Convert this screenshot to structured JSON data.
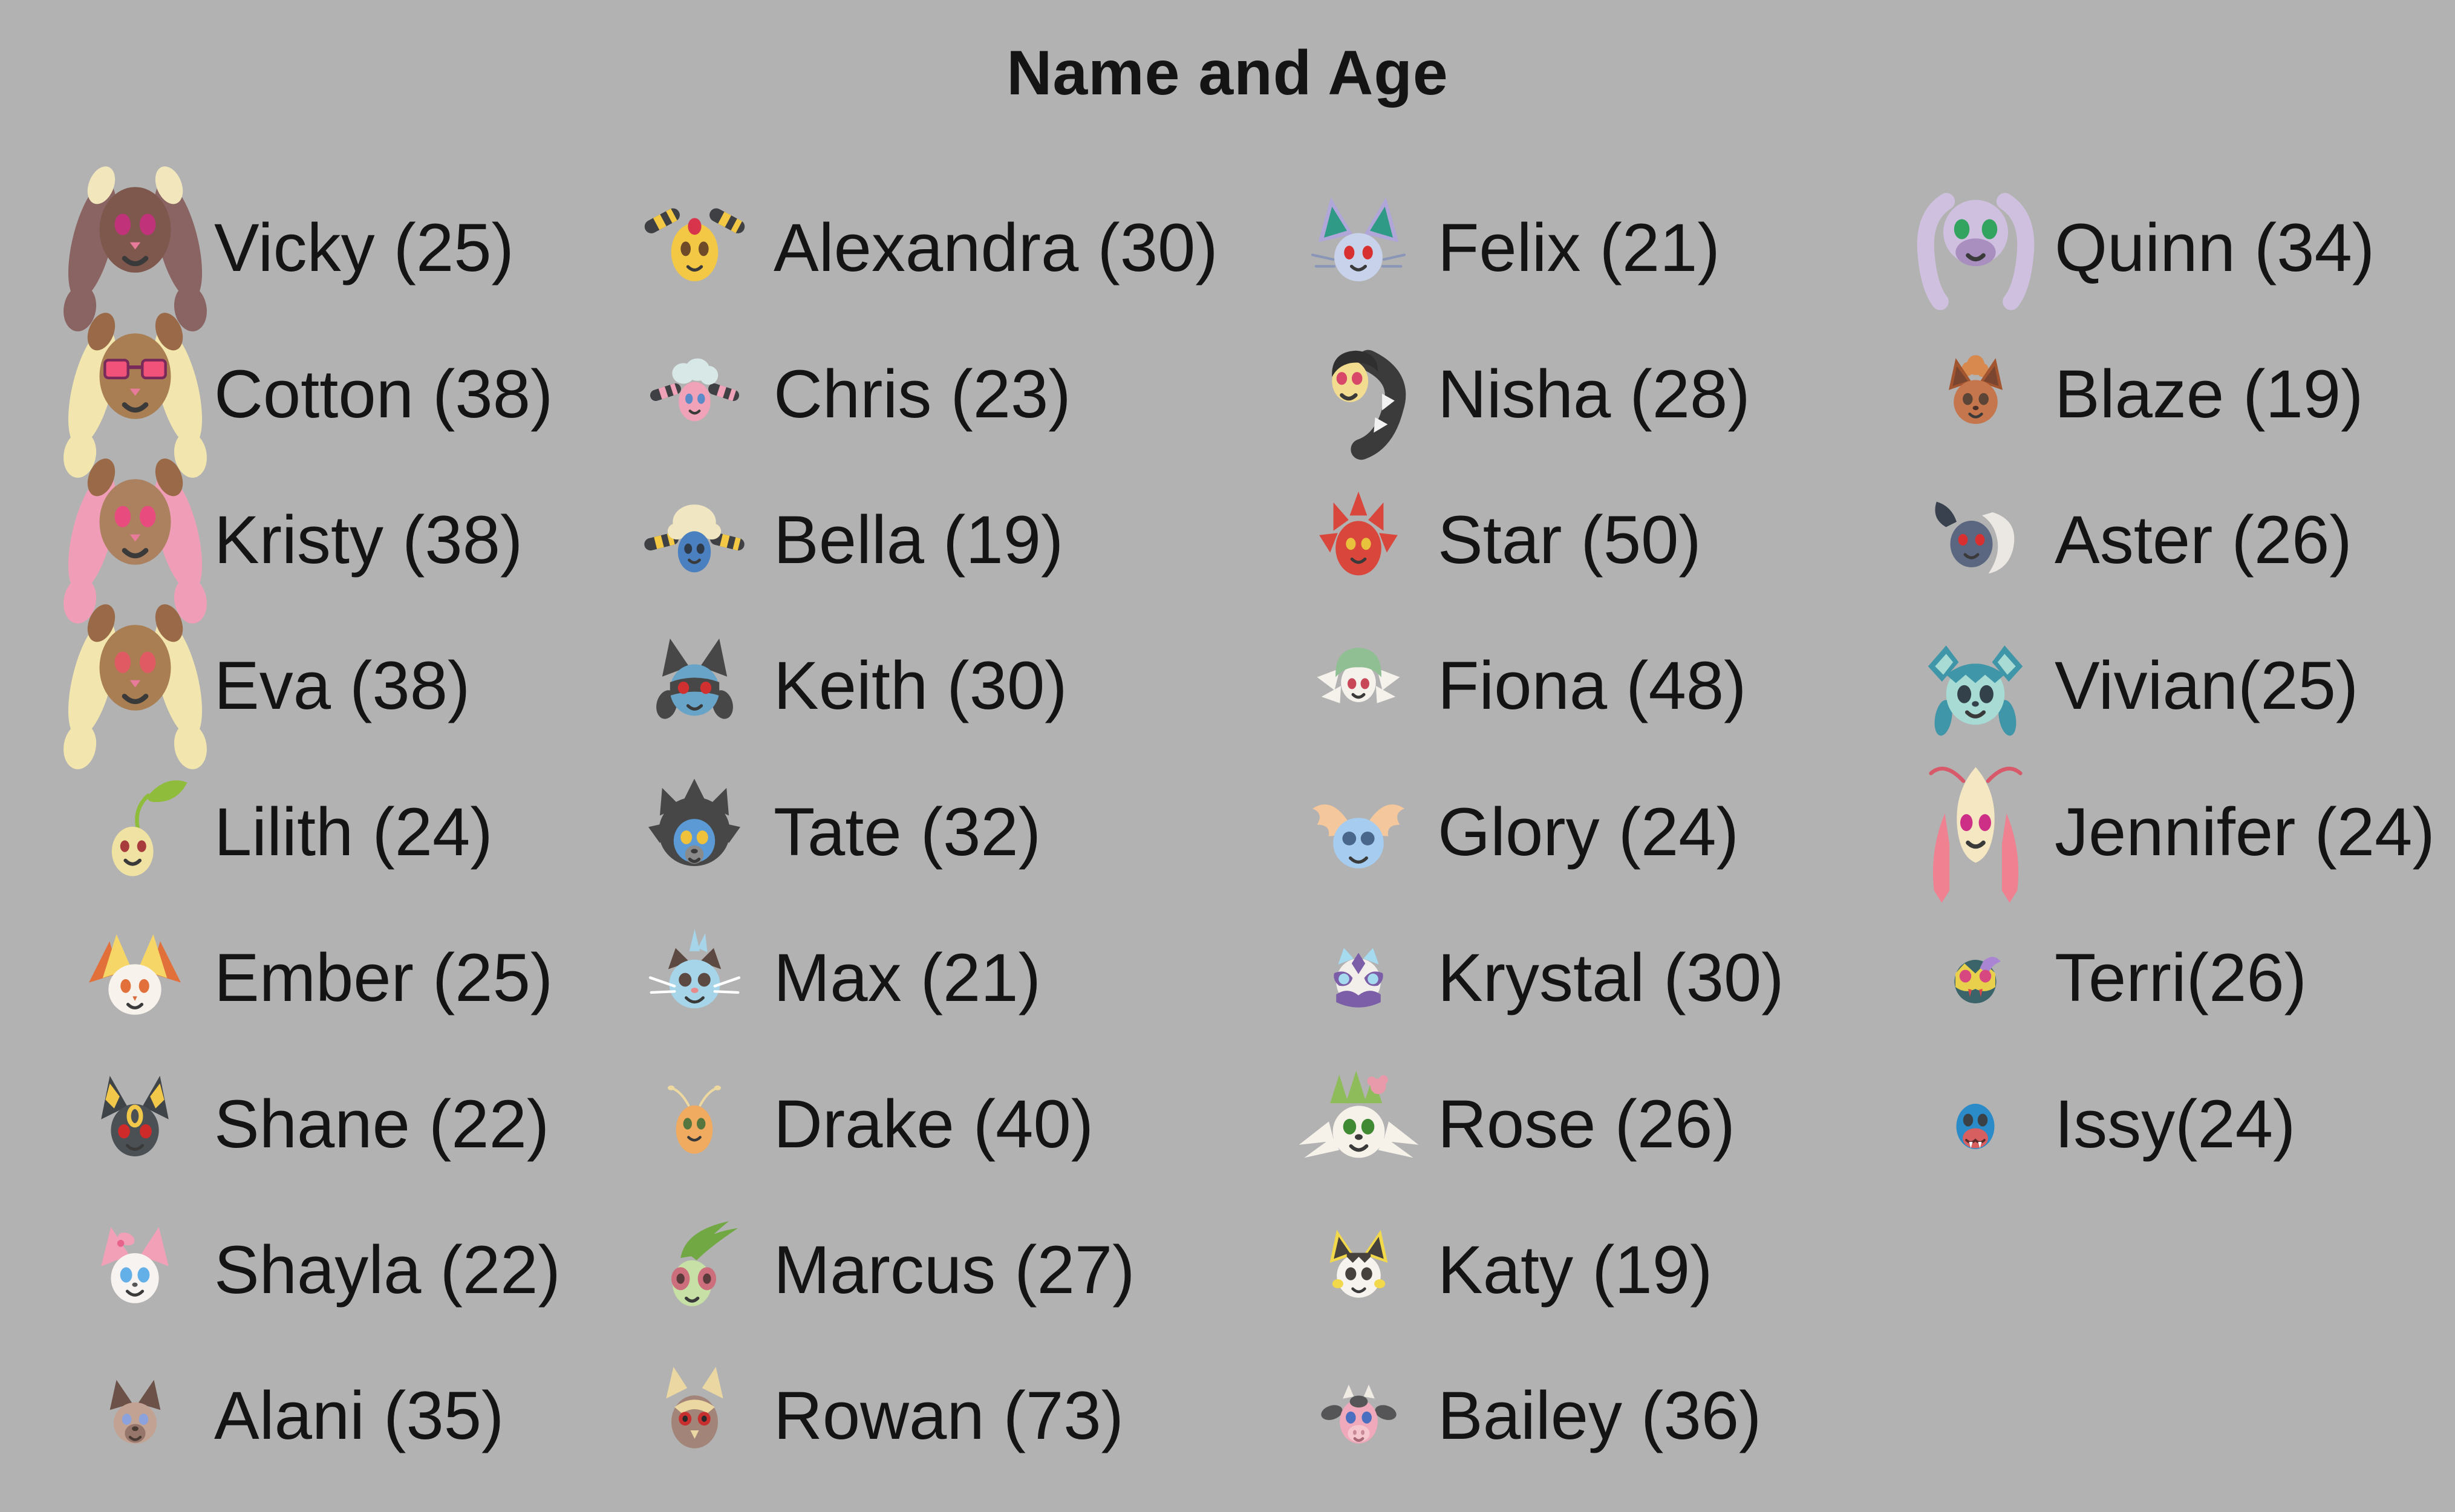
{
  "page": {
    "background": "#B2B2B2",
    "text_color": "#141414"
  },
  "title": "Name and Age",
  "chart_data": {
    "type": "table",
    "title": "Name and Age",
    "columns": [
      "Name",
      "Age"
    ],
    "rows": [
      [
        "Vicky",
        25
      ],
      [
        "Cotton",
        38
      ],
      [
        "Kristy",
        38
      ],
      [
        "Eva",
        38
      ],
      [
        "Lilith",
        24
      ],
      [
        "Ember",
        25
      ],
      [
        "Shane",
        22
      ],
      [
        "Shayla",
        22
      ],
      [
        "Alani",
        35
      ],
      [
        "Alexandra",
        30
      ],
      [
        "Chris",
        23
      ],
      [
        "Bella",
        19
      ],
      [
        "Keith",
        30
      ],
      [
        "Tate",
        32
      ],
      [
        "Max",
        21
      ],
      [
        "Drake",
        40
      ],
      [
        "Marcus",
        27
      ],
      [
        "Rowan",
        73
      ],
      [
        "Felix",
        21
      ],
      [
        "Nisha",
        28
      ],
      [
        "Star",
        50
      ],
      [
        "Fiona",
        48
      ],
      [
        "Glory",
        24
      ],
      [
        "Krystal",
        30
      ],
      [
        "Rose",
        26
      ],
      [
        "Katy",
        19
      ],
      [
        "Bailey",
        36
      ],
      [
        "Quinn",
        34
      ],
      [
        "Blaze",
        19
      ],
      [
        "Aster",
        26
      ],
      [
        "Vivian",
        25
      ],
      [
        "Jennifer",
        24
      ],
      [
        "Terri",
        26
      ],
      [
        "Issy",
        24
      ]
    ],
    "layout": {
      "columns_of_items": 4,
      "rows_per_column": 9,
      "legend": "none",
      "grid": "off"
    }
  },
  "people": [
    {
      "name": "Vicky",
      "age": 25,
      "label": "Vicky (25)",
      "icon": "lopunny",
      "colors": {
        "head": "#7E574D",
        "ear": "#8A6463",
        "tip": "#8A6463",
        "eartop": "#F2E7BC",
        "eye": "#C0337A"
      }
    },
    {
      "name": "Cotton",
      "age": 38,
      "label": "Cotton (38)",
      "icon": "lopunny",
      "colors": {
        "head": "#A87E52",
        "ear": "#F2E6AE",
        "tip": "#F2E6AE",
        "eartop": "#9A6A48",
        "eye": "#F0527A",
        "glasses": true
      }
    },
    {
      "name": "Kristy",
      "age": 38,
      "label": "Kristy (38)",
      "icon": "lopunny",
      "colors": {
        "head": "#AB8160",
        "ear": "#F09EB7",
        "tip": "#F09EB7",
        "eartop": "#9A6A48",
        "eye": "#E84C7F"
      }
    },
    {
      "name": "Eva",
      "age": 38,
      "label": "Eva (38)",
      "icon": "lopunny",
      "colors": {
        "head": "#A87E52",
        "ear": "#F2E6AE",
        "tip": "#F2E6AE",
        "eartop": "#9A6A48",
        "eye": "#E05A63"
      }
    },
    {
      "name": "Lilith",
      "age": 24,
      "label": "Lilith (24)",
      "icon": "sprout",
      "colors": {
        "head": "#EFE2A2",
        "leaf": "#8FBC3B",
        "eye": "#A83C3C"
      }
    },
    {
      "name": "Ember",
      "age": 25,
      "label": "Ember (25)",
      "icon": "fennekin",
      "colors": {
        "head": "#F7F3EC",
        "ear": "#F5D667",
        "flare": "#E2703A",
        "eye": "#E2703A"
      }
    },
    {
      "name": "Shane",
      "age": 22,
      "label": "Shane (22)",
      "icon": "umbreon",
      "colors": {
        "head": "#4A5054",
        "ear": "#3F4448",
        "ring": "#F2C84B",
        "eye": "#CE2A2A"
      }
    },
    {
      "name": "Shayla",
      "age": 22,
      "label": "Shayla (22)",
      "icon": "sylveon",
      "colors": {
        "head": "#F7F3F0",
        "ear": "#F2A0B8",
        "bow": "#F2A0B8",
        "eye": "#63B0E8"
      }
    },
    {
      "name": "Alani",
      "age": 35,
      "label": "Alani (35)",
      "icon": "rockruff",
      "colors": {
        "head": "#C2A292",
        "ear": "#6B5148",
        "muzzle": "#96766A",
        "eye": "#8CA2DC"
      }
    },
    {
      "name": "Alexandra",
      "age": 30,
      "label": "Alexandra (30)",
      "icon": "ampharos",
      "colors": {
        "head": "#F2C844",
        "dark": "#3F4044",
        "stripe": "#F2C844",
        "gem": "#D8344C",
        "eye": "#6E4A28"
      }
    },
    {
      "name": "Chris",
      "age": 23,
      "label": "Chris (23)",
      "icon": "flaaffy",
      "colors": {
        "head": "#F0A2B8",
        "dark": "#3F4044",
        "stripe": "#F0A2B8",
        "wool": "#D8E8E6",
        "eye": "#5A8AC8"
      }
    },
    {
      "name": "Bella",
      "age": 19,
      "label": "Bella (19)",
      "icon": "mareep",
      "colors": {
        "head": "#4A7FC0",
        "dark": "#3F4044",
        "stripe": "#F2C844",
        "wool": "#F0E6C2",
        "eye": "#2F3A48"
      }
    },
    {
      "name": "Keith",
      "age": 30,
      "label": "Keith (30)",
      "icon": "riolu",
      "colors": {
        "head": "#68A4C8",
        "dark": "#474747",
        "eye": "#D03030"
      }
    },
    {
      "name": "Tate",
      "age": 32,
      "label": "Tate (32)",
      "icon": "luxray",
      "colors": {
        "head": "#5B9AD4",
        "mane": "#474747",
        "eye": "#F0C23C"
      }
    },
    {
      "name": "Max",
      "age": 21,
      "label": "Max (21)",
      "icon": "bluecat",
      "colors": {
        "head": "#A6D4E8",
        "dark": "#5C4A42",
        "eye": "#5C4A42"
      }
    },
    {
      "name": "Drake",
      "age": 40,
      "label": "Drake (40)",
      "icon": "drake",
      "colors": {
        "head": "#F0AB61",
        "ant": "#EDD9A0",
        "eye": "#56763F"
      }
    },
    {
      "name": "Marcus",
      "age": 27,
      "label": "Marcus (27)",
      "icon": "flygon",
      "colors": {
        "head": "#C6E0A6",
        "crest": "#72A844",
        "cover": "#CC6E7C"
      }
    },
    {
      "name": "Rowan",
      "age": 73,
      "label": "Rowan (73)",
      "icon": "noctowl",
      "colors": {
        "head": "#A28478",
        "tuft": "#EAD7A2",
        "eye": "#C83030"
      }
    },
    {
      "name": "Felix",
      "age": 21,
      "label": "Felix (21)",
      "icon": "nidoran",
      "colors": {
        "head": "#C8D2EA",
        "earOuter": "#B0A6D8",
        "earInner": "#2F9A86",
        "eye": "#D83030"
      }
    },
    {
      "name": "Nisha",
      "age": 28,
      "label": "Nisha (28)",
      "icon": "seviper",
      "colors": {
        "head": "#F2DC8F",
        "hair": "#2F2F2F",
        "body": "#3B3B3B",
        "eye": "#D84868"
      }
    },
    {
      "name": "Star",
      "age": 50,
      "label": "Star (50)",
      "icon": "flame",
      "colors": {
        "head": "#D8463C",
        "eye": "#E8C23C"
      }
    },
    {
      "name": "Fiona",
      "age": 48,
      "label": "Fiona (48)",
      "icon": "gardevoir",
      "colors": {
        "head": "#F5F2EC",
        "cap": "#8FBF92",
        "wing": "#F5F2EC",
        "eye": "#C84858"
      }
    },
    {
      "name": "Glory",
      "age": 24,
      "label": "Glory (24)",
      "icon": "wingface",
      "colors": {
        "head": "#A6CDF0",
        "wing": "#F4C79C",
        "eye": "#49678A"
      }
    },
    {
      "name": "Krystal",
      "age": 30,
      "label": "Krystal (30)",
      "icon": "froslass",
      "colors": {
        "head": "#F2EEE9",
        "ice": "#A5DAEF",
        "purple": "#7B5EA7"
      }
    },
    {
      "name": "Rose",
      "age": 26,
      "label": "Rose (26)",
      "icon": "shaymin",
      "colors": {
        "head": "#F6F2EA",
        "grass": "#8FBC5A",
        "flower": "#E89AAB",
        "eye": "#3F8A33"
      }
    },
    {
      "name": "Katy",
      "age": 19,
      "label": "Katy (19)",
      "icon": "emolga",
      "colors": {
        "head": "#F6F3EE",
        "rim": "#F2D84B",
        "dark": "#46413C",
        "eye": "#46413C",
        "cheek": "#F2D84B"
      }
    },
    {
      "name": "Bailey",
      "age": 36,
      "label": "Bailey (36)",
      "icon": "miltank",
      "colors": {
        "head": "#F0A9BA",
        "dark": "#555558",
        "horn": "#F0ECE4",
        "eye": "#4A6FC0"
      }
    },
    {
      "name": "Quinn",
      "age": 34,
      "label": "Quinn (34)",
      "icon": "goodra",
      "colors": {
        "head": "#CEC0DE",
        "muzzle": "#A98FC0",
        "eye": "#33A45F"
      }
    },
    {
      "name": "Blaze",
      "age": 19,
      "label": "Blaze (19)",
      "icon": "vulpix",
      "colors": {
        "head": "#C5764C",
        "ear": "#A2552F",
        "earIn": "#7A4630",
        "tuft": "#D8894E",
        "eye": "#5C4436"
      }
    },
    {
      "name": "Aster",
      "age": 26,
      "label": "Aster (26)",
      "icon": "absol",
      "colors": {
        "head": "#5B6780",
        "hair": "#EBE7E3",
        "horn": "#39404E",
        "eye": "#D83030"
      }
    },
    {
      "name": "Vivian",
      "age": 25,
      "label": "Vivian(25)",
      "icon": "glaceon",
      "colors": {
        "head": "#A7DBD4",
        "ear": "#3E96A8",
        "eye": "#33414A"
      }
    },
    {
      "name": "Jennifer",
      "age": 24,
      "label": "Jennifer (24)",
      "icon": "milotic",
      "colors": {
        "head": "#F5E7C2",
        "fin": "#EF8191",
        "ant": "#D85A6A",
        "eye": "#CE2F86"
      }
    },
    {
      "name": "Terri",
      "age": 26,
      "label": "Terri(26)",
      "icon": "maskface",
      "colors": {
        "head": "#3A646A",
        "mask": "#E8CF4C",
        "streak": "#A985D4",
        "eye": "#D84880"
      }
    },
    {
      "name": "Issy",
      "age": 24,
      "label": "Issy(24)",
      "icon": "bluehead",
      "colors": {
        "head": "#2B8BC8",
        "snout": "#D85F5F",
        "eye": "#3A4248"
      }
    }
  ]
}
